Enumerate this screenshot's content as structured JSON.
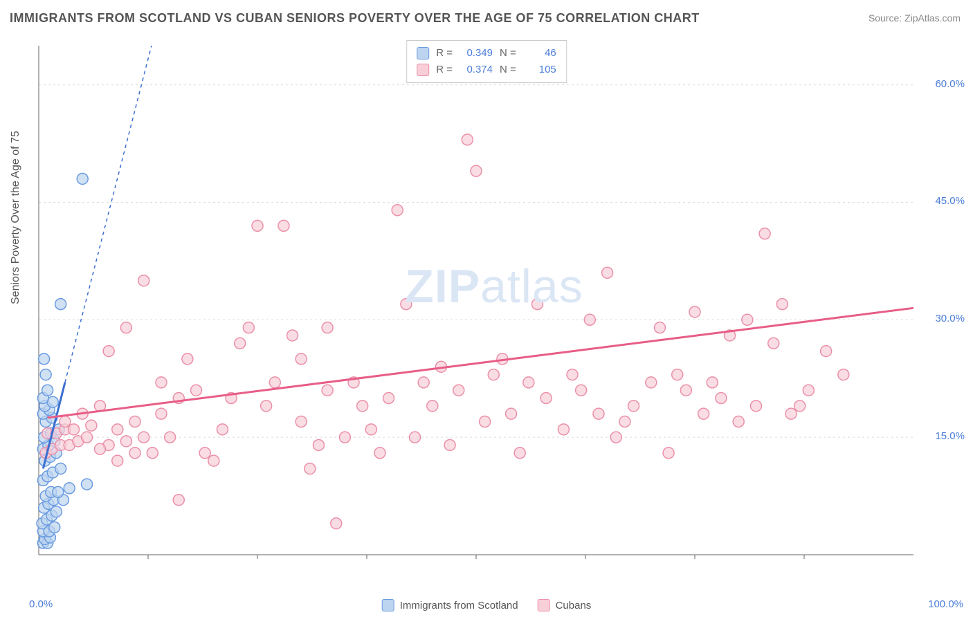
{
  "title": "IMMIGRANTS FROM SCOTLAND VS CUBAN SENIORS POVERTY OVER THE AGE OF 75 CORRELATION CHART",
  "source": "Source: ZipAtlas.com",
  "y_axis_label": "Seniors Poverty Over the Age of 75",
  "watermark_bold": "ZIP",
  "watermark_light": "atlas",
  "chart": {
    "type": "scatter",
    "xlim": [
      0,
      100
    ],
    "ylim": [
      0,
      65
    ],
    "x_tick_min": "0.0%",
    "x_tick_max": "100.0%",
    "y_ticks": [
      {
        "v": 15,
        "label": "15.0%"
      },
      {
        "v": 30,
        "label": "30.0%"
      },
      {
        "v": 45,
        "label": "45.0%"
      },
      {
        "v": 60,
        "label": "60.0%"
      }
    ],
    "x_minor_ticks": [
      12.5,
      25,
      37.5,
      50,
      62.5,
      75,
      87.5
    ],
    "grid_color": "#dcdcdc",
    "axis_color": "#666666",
    "tick_label_color": "#4a7dd8",
    "background_color": "#ffffff",
    "marker_radius": 8
  },
  "series": [
    {
      "name": "Immigrants from Scotland",
      "fill": "#bcd4f0",
      "stroke": "#6a9be0",
      "line_color": "#3d6fd0",
      "line_dash": "5,5",
      "trend": {
        "x1": 0.5,
        "y1": 11,
        "x2": 3,
        "y2": 22,
        "extend_x": 26,
        "extend_y": 122
      },
      "R": "0.349",
      "N": "46",
      "points": [
        [
          0.5,
          1.5
        ],
        [
          1,
          1.5
        ],
        [
          0.7,
          2
        ],
        [
          1.3,
          2.2
        ],
        [
          0.5,
          3
        ],
        [
          1.2,
          3
        ],
        [
          1.8,
          3.5
        ],
        [
          0.4,
          4
        ],
        [
          0.9,
          4.5
        ],
        [
          1.5,
          5
        ],
        [
          2,
          5.5
        ],
        [
          0.6,
          6
        ],
        [
          1.1,
          6.5
        ],
        [
          1.7,
          7
        ],
        [
          2.8,
          7
        ],
        [
          0.8,
          7.5
        ],
        [
          1.4,
          8
        ],
        [
          2.2,
          8
        ],
        [
          3.5,
          8.5
        ],
        [
          5.5,
          9
        ],
        [
          0.5,
          9.5
        ],
        [
          1,
          10
        ],
        [
          1.6,
          10.5
        ],
        [
          2.5,
          11
        ],
        [
          0.7,
          12
        ],
        [
          1.3,
          12.5
        ],
        [
          2,
          13
        ],
        [
          0.5,
          13.5
        ],
        [
          1.1,
          14
        ],
        [
          1.8,
          14.5
        ],
        [
          0.6,
          15
        ],
        [
          1.4,
          15.5
        ],
        [
          2.3,
          16
        ],
        [
          0.8,
          17
        ],
        [
          1.5,
          17.5
        ],
        [
          0.5,
          18
        ],
        [
          1.2,
          18.5
        ],
        [
          0.7,
          19
        ],
        [
          1.6,
          19.5
        ],
        [
          0.5,
          20
        ],
        [
          1,
          21
        ],
        [
          0.8,
          23
        ],
        [
          0.6,
          25
        ],
        [
          2.5,
          32
        ],
        [
          5,
          48
        ]
      ]
    },
    {
      "name": "Cubans",
      "fill": "#f8cfd9",
      "stroke": "#eb8fa8",
      "line_color": "#e85d87",
      "line_dash": "",
      "trend": {
        "x1": 1,
        "y1": 17.5,
        "x2": 100,
        "y2": 31.5
      },
      "R": "0.374",
      "N": "105",
      "points": [
        [
          0.8,
          13
        ],
        [
          1.5,
          13.5
        ],
        [
          2.5,
          14
        ],
        [
          3.5,
          14
        ],
        [
          4.5,
          14.5
        ],
        [
          5.5,
          15
        ],
        [
          1,
          15.5
        ],
        [
          2,
          15.5
        ],
        [
          3,
          16
        ],
        [
          4,
          16
        ],
        [
          6,
          16.5
        ],
        [
          8,
          14
        ],
        [
          10,
          14.5
        ],
        [
          12,
          15
        ],
        [
          7,
          13.5
        ],
        [
          9,
          16
        ],
        [
          11,
          17
        ],
        [
          13,
          13
        ],
        [
          15,
          15
        ],
        [
          3,
          17
        ],
        [
          5,
          18
        ],
        [
          7,
          19
        ],
        [
          14,
          18
        ],
        [
          9,
          12
        ],
        [
          11,
          13
        ],
        [
          16,
          7
        ],
        [
          18,
          21
        ],
        [
          14,
          22
        ],
        [
          20,
          12
        ],
        [
          22,
          20
        ],
        [
          8,
          26
        ],
        [
          10,
          29
        ],
        [
          12,
          35
        ],
        [
          23,
          27
        ],
        [
          25,
          42
        ],
        [
          17,
          25
        ],
        [
          19,
          13
        ],
        [
          21,
          16
        ],
        [
          24,
          29
        ],
        [
          26,
          19
        ],
        [
          28,
          42
        ],
        [
          27,
          22
        ],
        [
          30,
          17
        ],
        [
          16,
          20
        ],
        [
          29,
          28
        ],
        [
          32,
          14
        ],
        [
          33,
          21
        ],
        [
          34,
          4
        ],
        [
          35,
          15
        ],
        [
          30,
          25
        ],
        [
          31,
          11
        ],
        [
          36,
          22
        ],
        [
          38,
          16
        ],
        [
          33,
          29
        ],
        [
          37,
          19
        ],
        [
          40,
          20
        ],
        [
          42,
          32
        ],
        [
          39,
          13
        ],
        [
          44,
          22
        ],
        [
          41,
          44
        ],
        [
          43,
          15
        ],
        [
          46,
          24
        ],
        [
          45,
          19
        ],
        [
          48,
          21
        ],
        [
          47,
          14
        ],
        [
          50,
          49
        ],
        [
          52,
          23
        ],
        [
          51,
          17
        ],
        [
          49,
          53
        ],
        [
          54,
          18
        ],
        [
          56,
          22
        ],
        [
          55,
          13
        ],
        [
          58,
          20
        ],
        [
          60,
          16
        ],
        [
          53,
          25
        ],
        [
          62,
          21
        ],
        [
          57,
          32
        ],
        [
          64,
          18
        ],
        [
          61,
          23
        ],
        [
          66,
          15
        ],
        [
          63,
          30
        ],
        [
          68,
          19
        ],
        [
          65,
          36
        ],
        [
          70,
          22
        ],
        [
          67,
          17
        ],
        [
          72,
          13
        ],
        [
          74,
          21
        ],
        [
          71,
          29
        ],
        [
          76,
          18
        ],
        [
          73,
          23
        ],
        [
          78,
          20
        ],
        [
          75,
          31
        ],
        [
          80,
          17
        ],
        [
          77,
          22
        ],
        [
          82,
          19
        ],
        [
          79,
          28
        ],
        [
          84,
          27
        ],
        [
          81,
          30
        ],
        [
          86,
          18
        ],
        [
          83,
          41
        ],
        [
          88,
          21
        ],
        [
          85,
          32
        ],
        [
          90,
          26
        ],
        [
          87,
          19
        ],
        [
          92,
          23
        ]
      ]
    }
  ],
  "legend_bottom": [
    {
      "label": "Immigrants from Scotland",
      "fill": "#bcd4f0",
      "stroke": "#6a9be0"
    },
    {
      "label": "Cubans",
      "fill": "#f8cfd9",
      "stroke": "#eb8fa8"
    }
  ]
}
